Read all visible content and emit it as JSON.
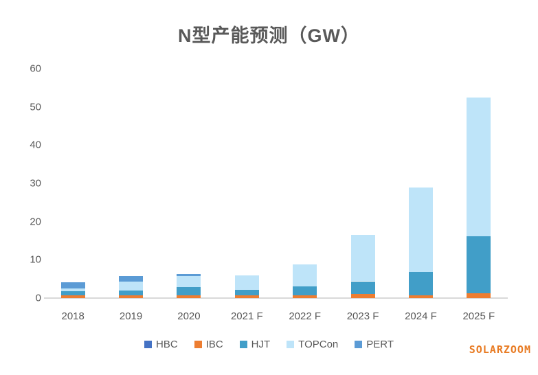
{
  "title": "N型产能预测（GW）",
  "watermark": "SOLARZOOM",
  "colors": {
    "HBC": "#4472c4",
    "IBC": "#ed7d31",
    "HJT": "#419ec8",
    "TOPCon": "#bee4f9",
    "PERT": "#5b9bd5",
    "axis_line": "#d9d9d9",
    "text": "#595959",
    "watermark": "#e87b23"
  },
  "chart_data": {
    "type": "bar",
    "stacked": true,
    "title": "N型产能预测（GW）",
    "xlabel": "",
    "ylabel": "",
    "ylim": [
      0,
      60
    ],
    "ytick_interval": 10,
    "grid": false,
    "legend_position": "bottom",
    "categories": [
      "2018",
      "2019",
      "2020",
      "2021 F",
      "2022 F",
      "2023 F",
      "2024 F",
      "2025 F"
    ],
    "series": [
      {
        "name": "HBC",
        "color": "#4472c4",
        "values": [
          0,
          0,
          0,
          0,
          0,
          0,
          0,
          0
        ]
      },
      {
        "name": "IBC",
        "color": "#ed7d31",
        "values": [
          0.8,
          0.8,
          0.8,
          0.8,
          0.7,
          1.0,
          0.8,
          1.2
        ]
      },
      {
        "name": "HJT",
        "color": "#419ec8",
        "values": [
          1.0,
          1.2,
          2.0,
          1.3,
          2.3,
          3.4,
          6.1,
          15.0
        ]
      },
      {
        "name": "TOPCon",
        "color": "#bee4f9",
        "values": [
          0.8,
          2.3,
          2.9,
          3.8,
          5.8,
          12.2,
          22.1,
          36.3
        ]
      },
      {
        "name": "PERT",
        "color": "#5b9bd5",
        "values": [
          1.5,
          1.5,
          0.5,
          0,
          0,
          0,
          0,
          0
        ]
      }
    ]
  }
}
